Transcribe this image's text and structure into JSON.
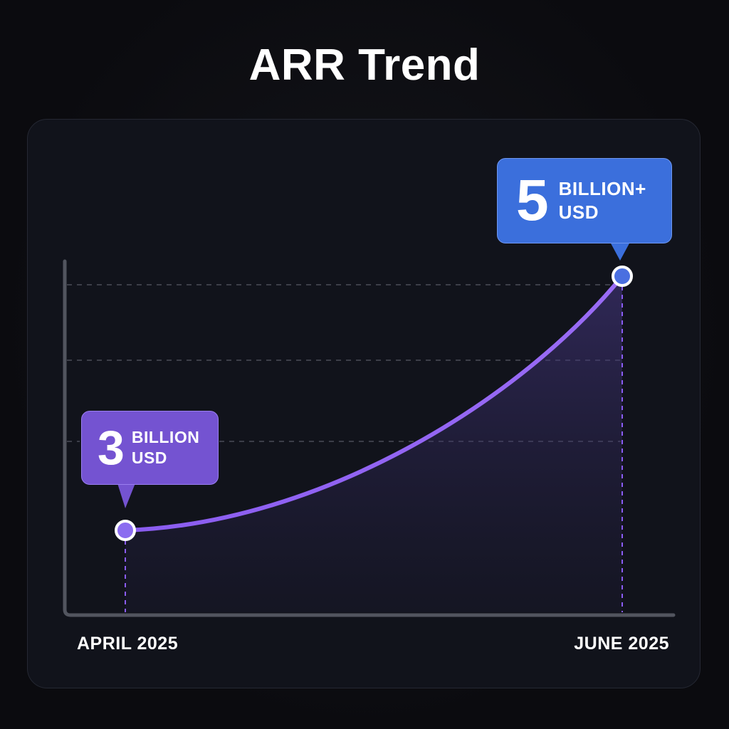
{
  "title": "ARR Trend",
  "chart_data": {
    "type": "area",
    "title": "ARR Trend",
    "xlabel": "",
    "ylabel": "",
    "categories": [
      "APRIL 2025",
      "JUNE 2025"
    ],
    "points": [
      {
        "x": "APRIL 2025",
        "y": 3
      },
      {
        "x": "JUNE 2025",
        "y": 5
      }
    ],
    "ylim": [
      0,
      5
    ],
    "grid": true,
    "annotations": [
      {
        "value": "3",
        "unit_line1": "BILLION",
        "unit_line2": "USD"
      },
      {
        "value": "5",
        "unit_line1": "BILLION+",
        "unit_line2": "USD"
      }
    ],
    "colors": {
      "line": "#8b5cf6",
      "start_callout": "#7453d1",
      "end_callout": "#3b6fdc",
      "point_fill_start": "#8b6cf0",
      "point_fill_end": "#4a6fe0"
    }
  }
}
